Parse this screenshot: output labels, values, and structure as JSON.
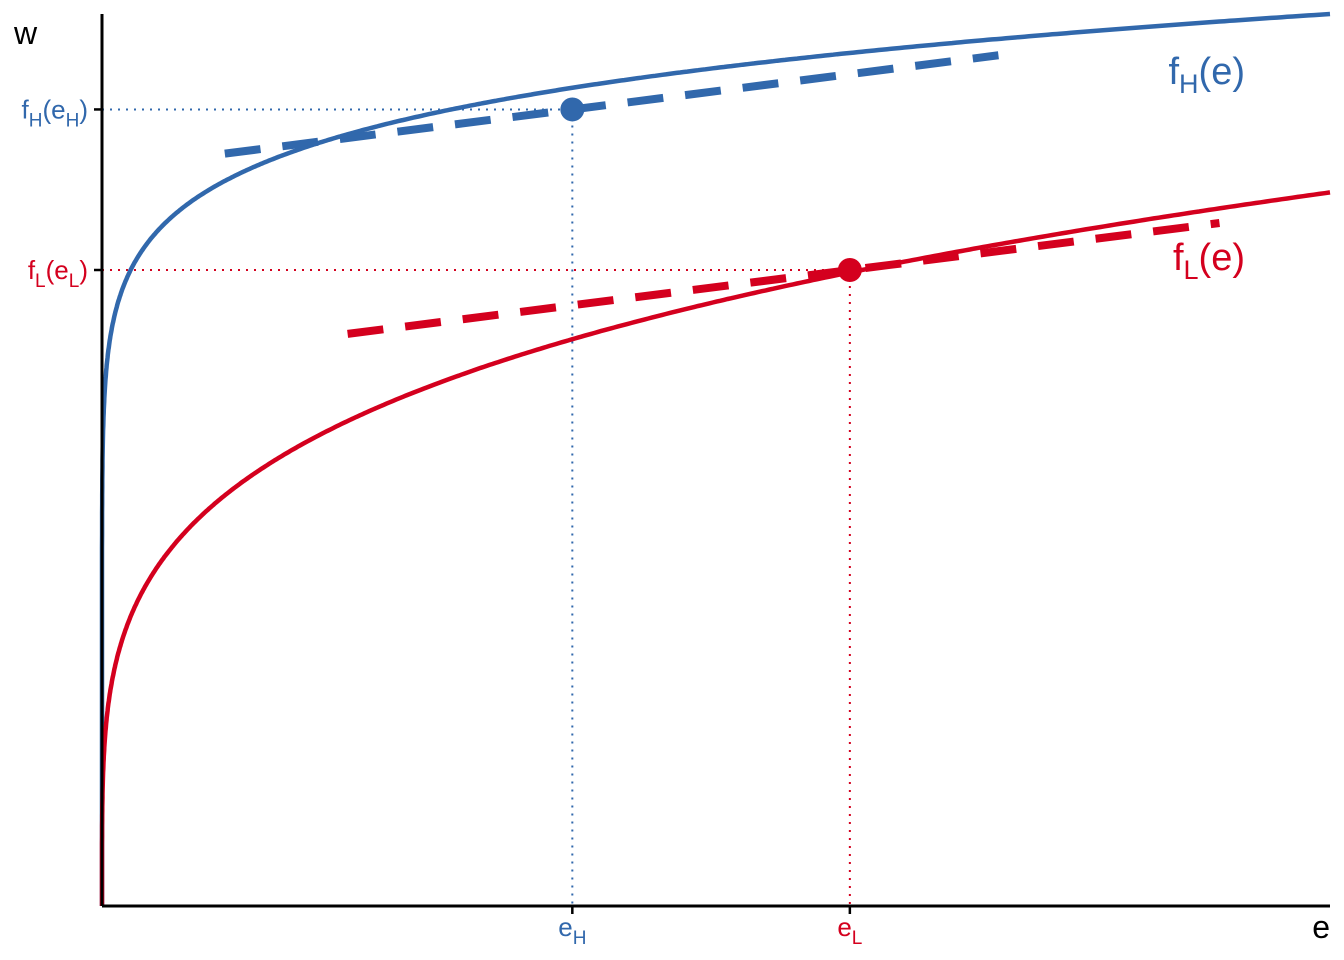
{
  "chart_data": {
    "type": "line",
    "xlabel": "e",
    "ylabel": "w",
    "xlim": [
      0,
      10
    ],
    "ylim": [
      0,
      10
    ],
    "grid": false,
    "legend": "none",
    "colors": {
      "high": "#3168ac",
      "low": "#d4001e",
      "axis": "#000000"
    },
    "series": [
      {
        "key": "high",
        "name_main": "f",
        "name_sub": "H",
        "name_arg": "(e)",
        "color": "#3168ac",
        "curve": "w = 10 * (e / 10)^0.09",
        "tangent": {
          "x_from": 1.0,
          "x_to": 7.3,
          "slope": 0.175,
          "style": "dashed"
        },
        "point": {
          "x": 3.83,
          "y": 8.93
        },
        "x_tick": {
          "main": "e",
          "sub": "H"
        },
        "y_tick": {
          "main": "f",
          "sub": "H",
          "open": "(e",
          "close": ")"
        }
      },
      {
        "key": "low",
        "name_main": "f",
        "name_sub": "L",
        "name_arg": "(e)",
        "color": "#d4001e",
        "curve": "w = 8 * (e / 10)^0.24",
        "tangent": {
          "x_from": 2.0,
          "x_to": 9.1,
          "slope": 0.175,
          "style": "dashed"
        },
        "point": {
          "x": 6.09,
          "y": 7.13
        },
        "x_tick": {
          "main": "e",
          "sub": "L"
        },
        "y_tick": {
          "main": "f",
          "sub": "L",
          "open": "(e",
          "close": ")"
        }
      }
    ]
  }
}
